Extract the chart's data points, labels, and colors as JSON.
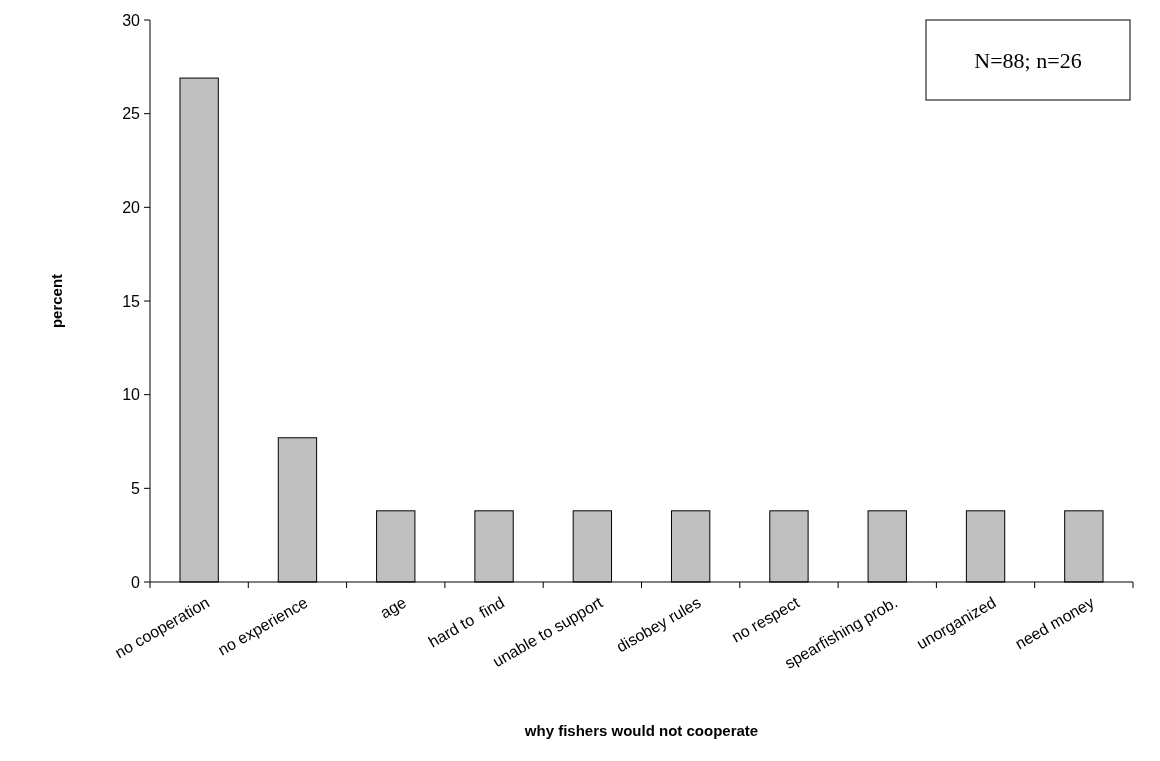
{
  "chart_data": {
    "type": "bar",
    "xlabel": "why fishers would not cooperate",
    "ylabel": "percent",
    "categories": [
      "no cooperation",
      "no experience",
      "age",
      "hard to  find",
      "unable to support",
      "disobey rules",
      "no respect",
      "spearfishing prob.",
      "unorganized",
      "need money"
    ],
    "values": [
      26.9,
      7.7,
      3.8,
      3.8,
      3.8,
      3.8,
      3.8,
      3.8,
      3.8,
      3.8
    ],
    "color": "#c0c0c0",
    "ylim": [
      0,
      30
    ],
    "yticks": [
      0,
      5,
      10,
      15,
      20,
      25,
      30
    ],
    "grid": false,
    "annotations": [
      "N=88; n=26"
    ]
  }
}
